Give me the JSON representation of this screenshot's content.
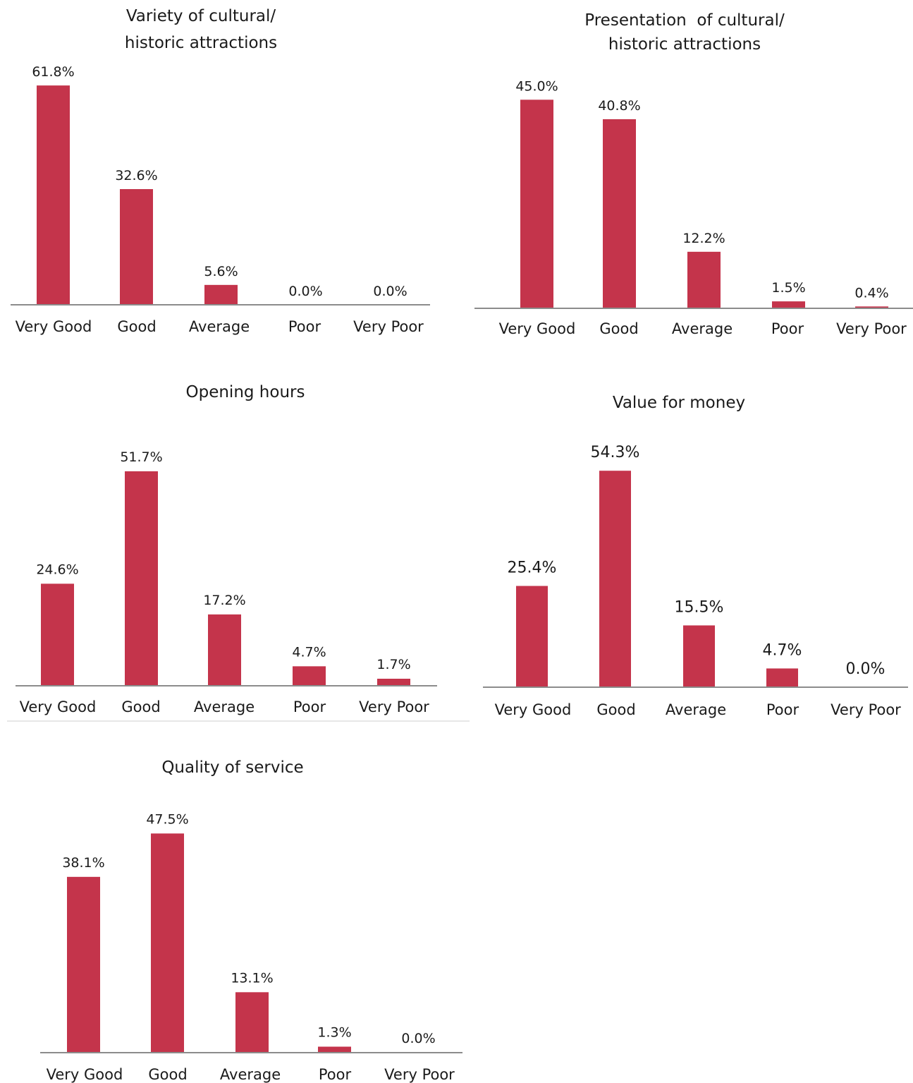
{
  "bar_color": "#c4344b",
  "axis_color": "#8c8c8c",
  "chart_data": [
    {
      "type": "bar",
      "title_lines": [
        "Variety of cultural/",
        "historic attractions"
      ],
      "categories": [
        "Very Good",
        "Good",
        "Average",
        "Poor",
        "Very Poor"
      ],
      "values": [
        61.8,
        32.6,
        5.6,
        0.0,
        0.0
      ],
      "labels": [
        "61.8%",
        "32.6%",
        "5.6%",
        "0.0%",
        "0.0%"
      ]
    },
    {
      "type": "bar",
      "title_lines": [
        "Presentation  of cultural/",
        "historic attractions"
      ],
      "categories": [
        "Very Good",
        "Good",
        "Average",
        "Poor",
        "Very Poor"
      ],
      "values": [
        45.0,
        40.8,
        12.2,
        1.5,
        0.4
      ],
      "labels": [
        "45.0%",
        "40.8%",
        "12.2%",
        "1.5%",
        "0.4%"
      ]
    },
    {
      "type": "bar",
      "title_lines": [
        "Opening hours"
      ],
      "categories": [
        "Very Good",
        "Good",
        "Average",
        "Poor",
        "Very Poor"
      ],
      "values": [
        24.6,
        51.7,
        17.2,
        4.7,
        1.7
      ],
      "labels": [
        "24.6%",
        "51.7%",
        "17.2%",
        "4.7%",
        "1.7%"
      ]
    },
    {
      "type": "bar",
      "title_lines": [
        "Value for money"
      ],
      "categories": [
        "Very Good",
        "Good",
        "Average",
        "Poor",
        "Very Poor"
      ],
      "values": [
        25.4,
        54.3,
        15.5,
        4.7,
        0.0
      ],
      "labels": [
        "25.4%",
        "54.3%",
        "15.5%",
        "4.7%",
        "0.0%"
      ]
    },
    {
      "type": "bar",
      "title_lines": [
        "Quality of service"
      ],
      "categories": [
        "Very Good",
        "Good",
        "Average",
        "Poor",
        "Very Poor"
      ],
      "values": [
        38.1,
        47.5,
        13.1,
        1.3,
        0.0
      ],
      "labels": [
        "38.1%",
        "47.5%",
        "13.1%",
        "1.3%",
        "0.0%"
      ]
    }
  ]
}
